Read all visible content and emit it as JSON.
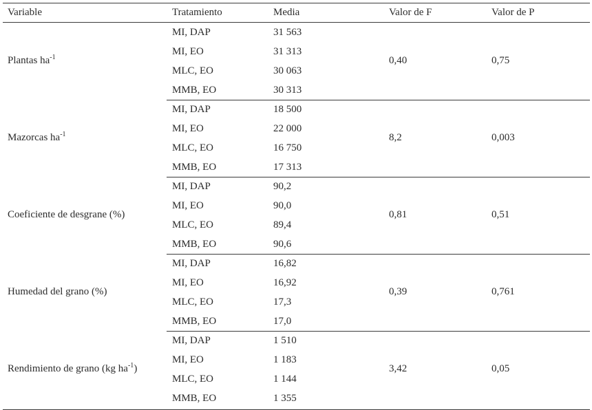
{
  "headers": {
    "variable": "Variable",
    "tratamiento": "Tratamiento",
    "media": "Media",
    "valor_f": "Valor de F",
    "valor_p": "Valor de P"
  },
  "groups": [
    {
      "variable": "Plantas ha",
      "variable_sup": "-1",
      "variable_suffix": "",
      "rows": [
        {
          "tratamiento": "MI, DAP",
          "media": "31 563"
        },
        {
          "tratamiento": "MI, EO",
          "media": "31 313"
        },
        {
          "tratamiento": "MLC, EO",
          "media": "30 063"
        },
        {
          "tratamiento": "MMB, EO",
          "media": "30 313"
        }
      ],
      "valor_f": "0,40",
      "valor_p": "0,75"
    },
    {
      "variable": "Mazorcas ha",
      "variable_sup": "-1",
      "variable_suffix": "",
      "rows": [
        {
          "tratamiento": "MI, DAP",
          "media": "18 500"
        },
        {
          "tratamiento": "MI, EO",
          "media": "22 000"
        },
        {
          "tratamiento": "MLC, EO",
          "media": "16 750"
        },
        {
          "tratamiento": "MMB, EO",
          "media": "17 313"
        }
      ],
      "valor_f": "8,2",
      "valor_p": "0,003"
    },
    {
      "variable": "Coeficiente de desgrane (%)",
      "variable_sup": "",
      "variable_suffix": "",
      "rows": [
        {
          "tratamiento": "MI, DAP",
          "media": "90,2"
        },
        {
          "tratamiento": "MI, EO",
          "media": "90,0"
        },
        {
          "tratamiento": "MLC, EO",
          "media": "89,4"
        },
        {
          "tratamiento": "MMB, EO",
          "media": "90,6"
        }
      ],
      "valor_f": "0,81",
      "valor_p": "0,51"
    },
    {
      "variable": "Humedad del grano (%)",
      "variable_sup": "",
      "variable_suffix": "",
      "rows": [
        {
          "tratamiento": "MI, DAP",
          "media": "16,82"
        },
        {
          "tratamiento": "MI, EO",
          "media": "16,92"
        },
        {
          "tratamiento": "MLC, EO",
          "media": "17,3"
        },
        {
          "tratamiento": "MMB, EO",
          "media": "17,0"
        }
      ],
      "valor_f": "0,39",
      "valor_p": "0,761"
    },
    {
      "variable": "Rendimiento de grano (kg ha",
      "variable_sup": "-1",
      "variable_suffix": ")",
      "rows": [
        {
          "tratamiento": "MI, DAP",
          "media": "1 510"
        },
        {
          "tratamiento": "MI, EO",
          "media": "1 183"
        },
        {
          "tratamiento": "MLC, EO",
          "media": "1 144"
        },
        {
          "tratamiento": "MMB, EO",
          "media": "1 355"
        }
      ],
      "valor_f": "3,42",
      "valor_p": "0,05"
    }
  ]
}
